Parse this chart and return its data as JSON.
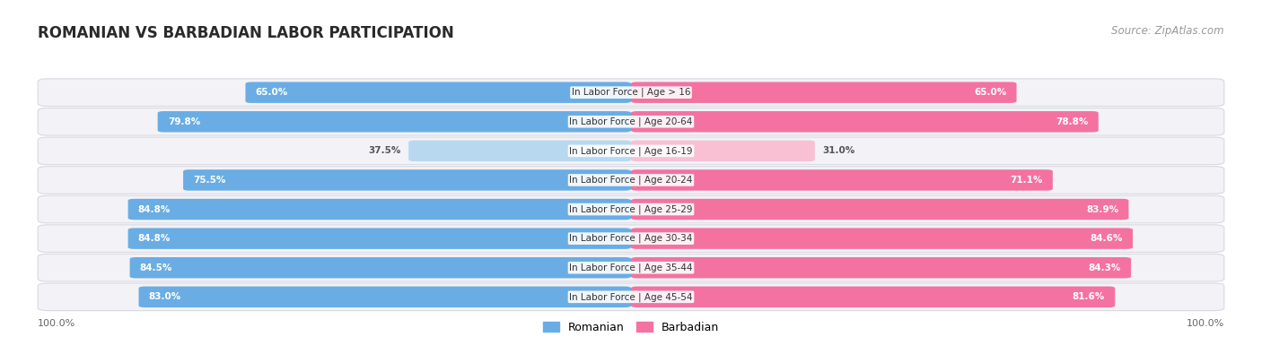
{
  "title": "ROMANIAN VS BARBADIAN LABOR PARTICIPATION",
  "source": "Source: ZipAtlas.com",
  "categories": [
    "In Labor Force | Age > 16",
    "In Labor Force | Age 20-64",
    "In Labor Force | Age 16-19",
    "In Labor Force | Age 20-24",
    "In Labor Force | Age 25-29",
    "In Labor Force | Age 30-34",
    "In Labor Force | Age 35-44",
    "In Labor Force | Age 45-54"
  ],
  "romanian_values": [
    65.0,
    79.8,
    37.5,
    75.5,
    84.8,
    84.8,
    84.5,
    83.0
  ],
  "barbadian_values": [
    65.0,
    78.8,
    31.0,
    71.1,
    83.9,
    84.6,
    84.3,
    81.6
  ],
  "romanian_color": "#6AADE4",
  "romanian_color_light": "#B8D8F0",
  "barbadian_color": "#F472A0",
  "barbadian_color_light": "#F9C0D4",
  "row_bg_color": "#F2F2F7",
  "row_bg_alt": "#EBEBF2",
  "title_fontsize": 12,
  "source_fontsize": 8.5,
  "label_fontsize": 7.5,
  "value_fontsize": 7.5,
  "legend_fontsize": 9,
  "max_value": 100.0,
  "background_color": "#FFFFFF"
}
